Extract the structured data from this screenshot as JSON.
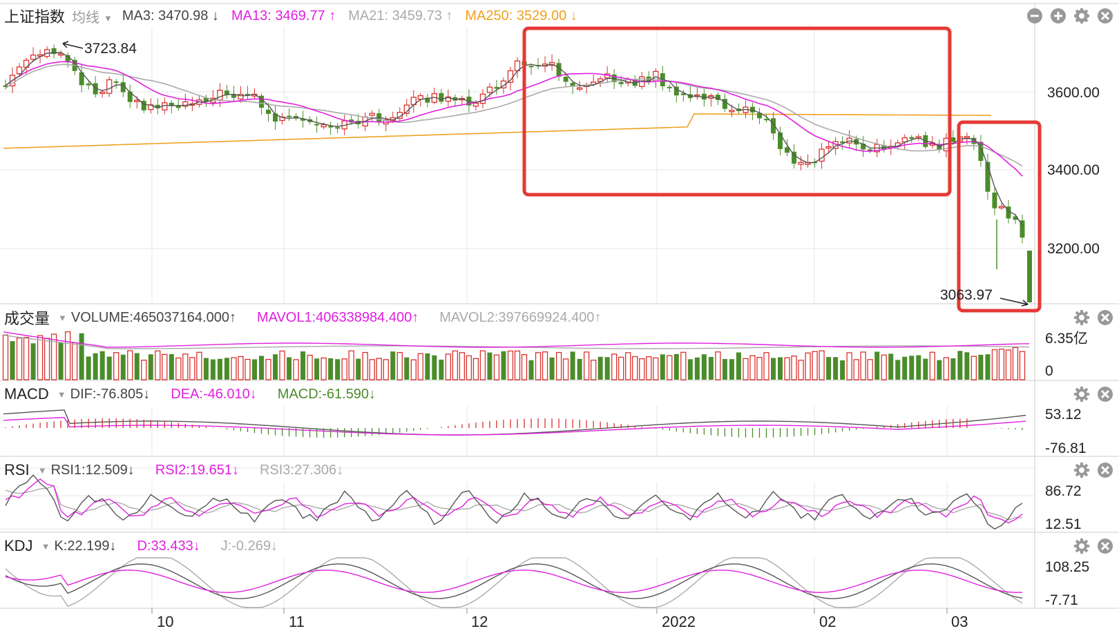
{
  "main": {
    "title": "上证指数",
    "line_type": "均线",
    "ma3": "MA3: 3470.98 ↓",
    "ma13": "MA13: 3469.77 ↑",
    "ma21": "MA21: 3459.73 ↑",
    "ma250": "MA250: 3529.00 ↓",
    "high_label": "3723.84",
    "low_label": "3063.97",
    "y_ticks": [
      "3600.00",
      "3400.00",
      "3200.00"
    ]
  },
  "volume": {
    "title": "成交量",
    "volume": "VOLUME:465037164.000↑",
    "mavol1": "MAVOL1:406338984.400↑",
    "mavol2": "MAVOL2:397669924.400↑",
    "y_ticks": [
      "6.35亿",
      "0"
    ]
  },
  "macd": {
    "title": "MACD",
    "dif": "DIF:-76.805↓",
    "dea": "DEA:-46.010↓",
    "macd": "MACD:-61.590↓",
    "y_ticks": [
      "53.12",
      "-76.81"
    ]
  },
  "rsi": {
    "title": "RSI",
    "rsi1": "RSI1:12.509↓",
    "rsi2": "RSI2:19.651↓",
    "rsi3": "RSI3:27.306↓",
    "y_ticks": [
      "86.72",
      "12.51"
    ]
  },
  "kdj": {
    "title": "KDJ",
    "k": "K:22.199↓",
    "d": "D:33.433↓",
    "j": "J:-0.269↓",
    "y_ticks": [
      "108.25",
      "-7.71"
    ]
  },
  "x_ticks": [
    "10",
    "11",
    "12",
    "2022",
    "02",
    "03"
  ],
  "colors": {
    "up": "#d9302c",
    "down": "#4a8c2a",
    "ma3": "#555555",
    "ma13": "#e020e0",
    "ma21": "#aaaaaa",
    "ma250": "#f0a020",
    "highlight": "#e53935"
  },
  "icons": [
    "minus-icon",
    "plus-icon",
    "gear-icon",
    "close-icon"
  ]
}
